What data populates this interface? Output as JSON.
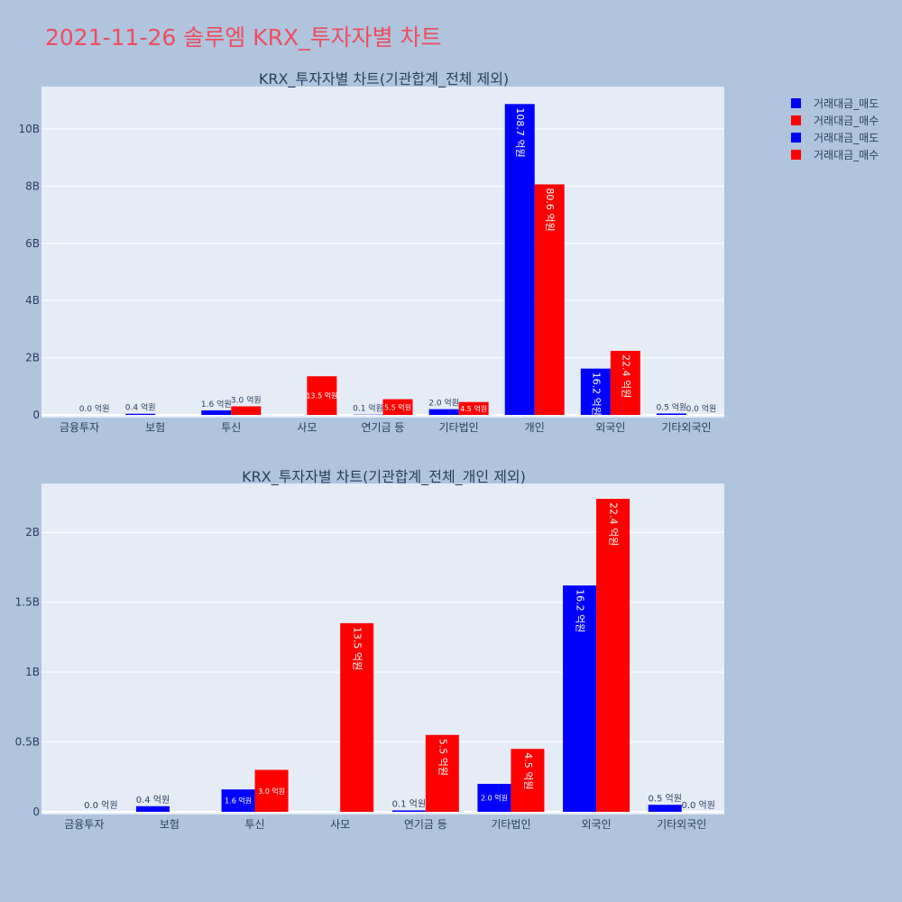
{
  "page": {
    "title": "2021-11-26 솔루엠 KRX_투자자별 차트"
  },
  "colors": {
    "sell": "#0000ff",
    "buy": "#ff0000",
    "plot_bg": "#e5ecf6",
    "page_bg": "#b0c4de"
  },
  "legend": [
    "거래대금_매도",
    "거래대금_매수",
    "거래대금_매도",
    "거래대금_매수"
  ],
  "chart_data": [
    {
      "type": "bar",
      "title": "KRX_투자자별 차트(기관합계_전체 제외)",
      "categories": [
        "금융투자",
        "보험",
        "투신",
        "사모",
        "연기금 등",
        "기타법인",
        "개인",
        "외국인",
        "기타외국인"
      ],
      "series": [
        {
          "name": "거래대금_매도",
          "values": [
            0,
            40000000,
            160000000,
            0,
            10000000,
            200000000,
            10870000000,
            1620000000,
            50000000
          ],
          "labels": [
            "",
            "0.4 억원",
            "1.6 억원",
            "",
            "0.1 억원",
            "2.0 억원",
            "108.7 억원",
            "16.2 억원",
            "0.5 억원"
          ]
        },
        {
          "name": "거래대금_매수",
          "values": [
            0,
            0,
            300000000,
            1350000000,
            550000000,
            450000000,
            8060000000,
            2240000000,
            0
          ],
          "labels": [
            "0.0 억원",
            "",
            "3.0 억원",
            "13.5 억원",
            "5.5 억원",
            "4.5 억원",
            "80.6 억원",
            "22.4 억원",
            "0.0 억원"
          ]
        }
      ],
      "yticks": [
        0,
        2000000000,
        4000000000,
        6000000000,
        8000000000,
        10000000000
      ],
      "ytick_labels": [
        "0",
        "2B",
        "4B",
        "6B",
        "8B",
        "10B"
      ],
      "ylim": [
        0,
        11480000000
      ]
    },
    {
      "type": "bar",
      "title": "KRX_투자자별 차트(기관합계_전체_개인 제외)",
      "categories": [
        "금융투자",
        "보험",
        "투신",
        "사모",
        "연기금 등",
        "기타법인",
        "외국인",
        "기타외국인"
      ],
      "series": [
        {
          "name": "거래대금_매도",
          "values": [
            0,
            40000000,
            160000000,
            0,
            10000000,
            200000000,
            1620000000,
            50000000
          ],
          "labels": [
            "",
            "0.4 억원",
            "1.6 억원",
            "",
            "0.1 억원",
            "2.0 억원",
            "16.2 억원",
            "0.5 억원"
          ]
        },
        {
          "name": "거래대금_매수",
          "values": [
            0,
            0,
            300000000,
            1350000000,
            550000000,
            450000000,
            2240000000,
            0
          ],
          "labels": [
            "0.0 억원",
            "",
            "3.0 억원",
            "13.5 억원",
            "5.5 억원",
            "4.5 억원",
            "22.4 억원",
            "0.0 억원"
          ]
        }
      ],
      "yticks": [
        0,
        500000000,
        1000000000,
        1500000000,
        2000000000
      ],
      "ytick_labels": [
        "0",
        "0.5B",
        "1B",
        "1.5B",
        "2B"
      ],
      "ylim": [
        0,
        2350000000
      ]
    }
  ]
}
